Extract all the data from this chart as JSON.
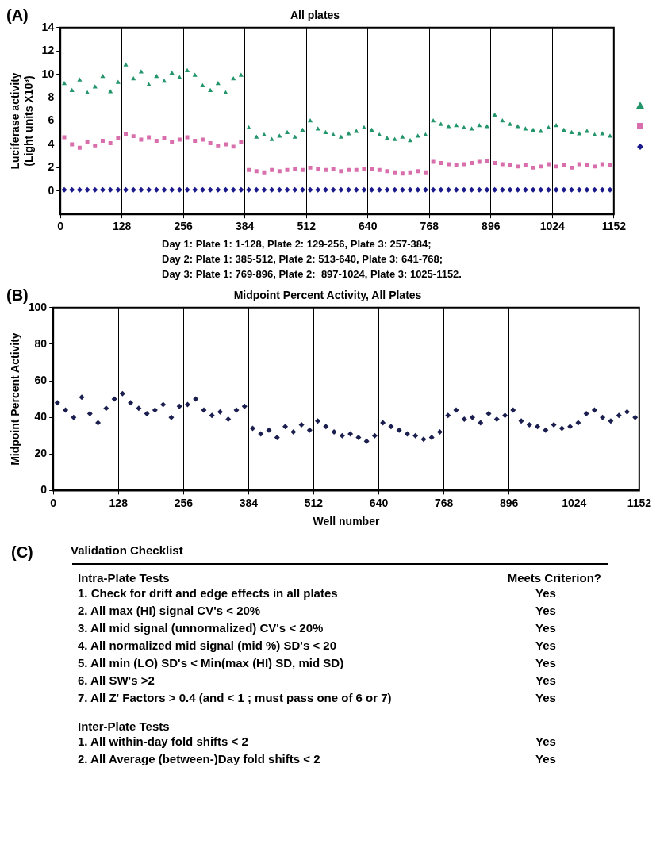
{
  "chart_data": [
    {
      "type": "scatter",
      "title": "All plates",
      "ylabel": "Luciferase activity (Light units X10³)",
      "annotations": [
        "(A)",
        "Day 1: Plate 1: 1-128, Plate 2: 129-256, Plate 3: 257-384;",
        "Day 2: Plate 1: 385-512, Plate 2: 513-640, Plate 3: 641-768;",
        "Day 3: Plate 1: 769-896, Plate 2:  897-1024, Plate 3: 1025-1152."
      ],
      "x": [
        8,
        24,
        40,
        56,
        72,
        88,
        104,
        120,
        136,
        152,
        168,
        184,
        200,
        216,
        232,
        248,
        264,
        280,
        296,
        312,
        328,
        344,
        360,
        376,
        392,
        408,
        424,
        440,
        456,
        472,
        488,
        504,
        520,
        536,
        552,
        568,
        584,
        600,
        616,
        632,
        648,
        664,
        680,
        696,
        712,
        728,
        744,
        760,
        776,
        792,
        808,
        824,
        840,
        856,
        872,
        888,
        904,
        920,
        936,
        952,
        968,
        984,
        1000,
        1016,
        1032,
        1048,
        1064,
        1080,
        1096,
        1112,
        1128,
        1144
      ],
      "series": [
        {
          "color": "#23956a",
          "marker": "triangle",
          "values": [
            9.2,
            8.6,
            9.5,
            8.4,
            8.9,
            9.8,
            8.5,
            9.3,
            10.8,
            9.6,
            10.2,
            9.1,
            9.8,
            9.4,
            10.1,
            9.7,
            10.3,
            9.9,
            9.0,
            8.6,
            9.2,
            8.4,
            9.6,
            9.9,
            5.4,
            4.6,
            4.8,
            4.4,
            4.7,
            5.0,
            4.6,
            5.2,
            6.0,
            5.3,
            5.0,
            4.8,
            4.6,
            4.9,
            5.1,
            5.4,
            5.2,
            4.8,
            4.5,
            4.4,
            4.6,
            4.3,
            4.7,
            4.8,
            6.0,
            5.7,
            5.5,
            5.6,
            5.4,
            5.3,
            5.6,
            5.5,
            6.5,
            6.0,
            5.7,
            5.5,
            5.3,
            5.2,
            5.1,
            5.4,
            5.6,
            5.2,
            5.0,
            4.9,
            5.1,
            4.8,
            4.9,
            4.7
          ]
        },
        {
          "color": "#d86fac",
          "marker": "square",
          "values": [
            4.6,
            4.0,
            3.7,
            4.2,
            3.9,
            4.3,
            4.1,
            4.5,
            4.9,
            4.7,
            4.4,
            4.6,
            4.3,
            4.5,
            4.2,
            4.4,
            4.6,
            4.3,
            4.4,
            4.1,
            3.9,
            4.0,
            3.8,
            4.2,
            1.8,
            1.7,
            1.6,
            1.8,
            1.7,
            1.8,
            1.9,
            1.8,
            2.0,
            1.9,
            1.8,
            1.9,
            1.7,
            1.8,
            1.8,
            1.9,
            1.9,
            1.8,
            1.7,
            1.6,
            1.5,
            1.6,
            1.7,
            1.6,
            2.5,
            2.4,
            2.3,
            2.2,
            2.3,
            2.4,
            2.5,
            2.6,
            2.4,
            2.3,
            2.2,
            2.1,
            2.2,
            2.0,
            2.1,
            2.3,
            2.1,
            2.2,
            2.0,
            2.3,
            2.2,
            2.1,
            2.3,
            2.2
          ]
        },
        {
          "color": "#1a1a8c",
          "marker": "diamond",
          "values": [
            0.1,
            0.1,
            0.1,
            0.1,
            0.1,
            0.1,
            0.1,
            0.1,
            0.1,
            0.1,
            0.1,
            0.1,
            0.1,
            0.1,
            0.1,
            0.1,
            0.1,
            0.1,
            0.1,
            0.1,
            0.1,
            0.1,
            0.1,
            0.1,
            0.1,
            0.1,
            0.1,
            0.1,
            0.1,
            0.1,
            0.1,
            0.1,
            0.1,
            0.1,
            0.1,
            0.1,
            0.1,
            0.1,
            0.1,
            0.1,
            0.1,
            0.1,
            0.1,
            0.1,
            0.1,
            0.1,
            0.1,
            0.1,
            0.1,
            0.1,
            0.1,
            0.1,
            0.1,
            0.1,
            0.1,
            0.1,
            0.1,
            0.1,
            0.1,
            0.1,
            0.1,
            0.1,
            0.1,
            0.1,
            0.1,
            0.1,
            0.1,
            0.1,
            0.1,
            0.1,
            0.1,
            0.1
          ]
        }
      ],
      "xlim": [
        0,
        1152
      ],
      "xticks": [
        0,
        128,
        256,
        384,
        512,
        640,
        768,
        896,
        1024,
        1152
      ],
      "ylim": [
        -2,
        14
      ],
      "yticks": [
        0,
        2,
        4,
        6,
        8,
        10,
        12,
        14
      ],
      "grid": "x"
    },
    {
      "type": "scatter",
      "title": "Midpoint Percent Activity, All Plates",
      "xlabel": "Well number",
      "ylabel": "Midpoint Percent Activity",
      "annotations": [
        "(B)"
      ],
      "x": [
        8,
        24,
        40,
        56,
        72,
        88,
        104,
        120,
        136,
        152,
        168,
        184,
        200,
        216,
        232,
        248,
        264,
        280,
        296,
        312,
        328,
        344,
        360,
        376,
        392,
        408,
        424,
        440,
        456,
        472,
        488,
        504,
        520,
        536,
        552,
        568,
        584,
        600,
        616,
        632,
        648,
        664,
        680,
        696,
        712,
        728,
        744,
        760,
        776,
        792,
        808,
        824,
        840,
        856,
        872,
        888,
        904,
        920,
        936,
        952,
        968,
        984,
        1000,
        1016,
        1032,
        1048,
        1064,
        1080,
        1096,
        1112,
        1128,
        1144
      ],
      "series": [
        {
          "color": "#1b1f4f",
          "marker": "diamond",
          "values": [
            48,
            44,
            40,
            51,
            42,
            37,
            45,
            50,
            53,
            48,
            45,
            42,
            44,
            47,
            40,
            46,
            47,
            50,
            44,
            41,
            43,
            39,
            44,
            46,
            34,
            31,
            33,
            29,
            35,
            32,
            36,
            33,
            38,
            35,
            32,
            30,
            31,
            29,
            27,
            30,
            37,
            35,
            33,
            31,
            30,
            28,
            29,
            32,
            41,
            44,
            39,
            40,
            37,
            42,
            39,
            41,
            44,
            38,
            36,
            35,
            33,
            36,
            34,
            35,
            37,
            42,
            44,
            40,
            38,
            41,
            43,
            40
          ]
        }
      ],
      "xlim": [
        0,
        1152
      ],
      "xticks": [
        0,
        128,
        256,
        384,
        512,
        640,
        768,
        896,
        1024,
        1152
      ],
      "ylim": [
        0,
        100
      ],
      "yticks": [
        0,
        20,
        40,
        60,
        80,
        100
      ],
      "grid": "x"
    },
    {
      "type": "other",
      "annotations": [
        "(C)"
      ],
      "title": "Validation Checklist",
      "subtitle": "Intra-Plate Tests",
      "y2label": "Meets Criterion?",
      "categories": [
        "1. Check for drift and edge effects in all plates",
        "2. All max (HI) signal CV's < 20%",
        "3. All mid signal (unnormalized) CV's < 20%",
        "4. All normalized mid signal (mid %) SD's < 20",
        "5. All min (LO) SD's < Min(max (HI) SD, mid SD)",
        "6. All SW's >2",
        "7. All Z' Factors > 0.4 (and < 1 ; must pass one of 6 or 7)"
      ],
      "value_labels": [
        "Yes",
        "Yes",
        "Yes",
        "Yes",
        "Yes",
        "Yes",
        "Yes"
      ]
    },
    {
      "type": "other",
      "subtitle": "Inter-Plate Tests",
      "categories": [
        "1. All within-day fold shifts < 2",
        "2. All Average (between-)Day fold shifts < 2"
      ],
      "value_labels": [
        "Yes",
        "Yes"
      ]
    }
  ]
}
